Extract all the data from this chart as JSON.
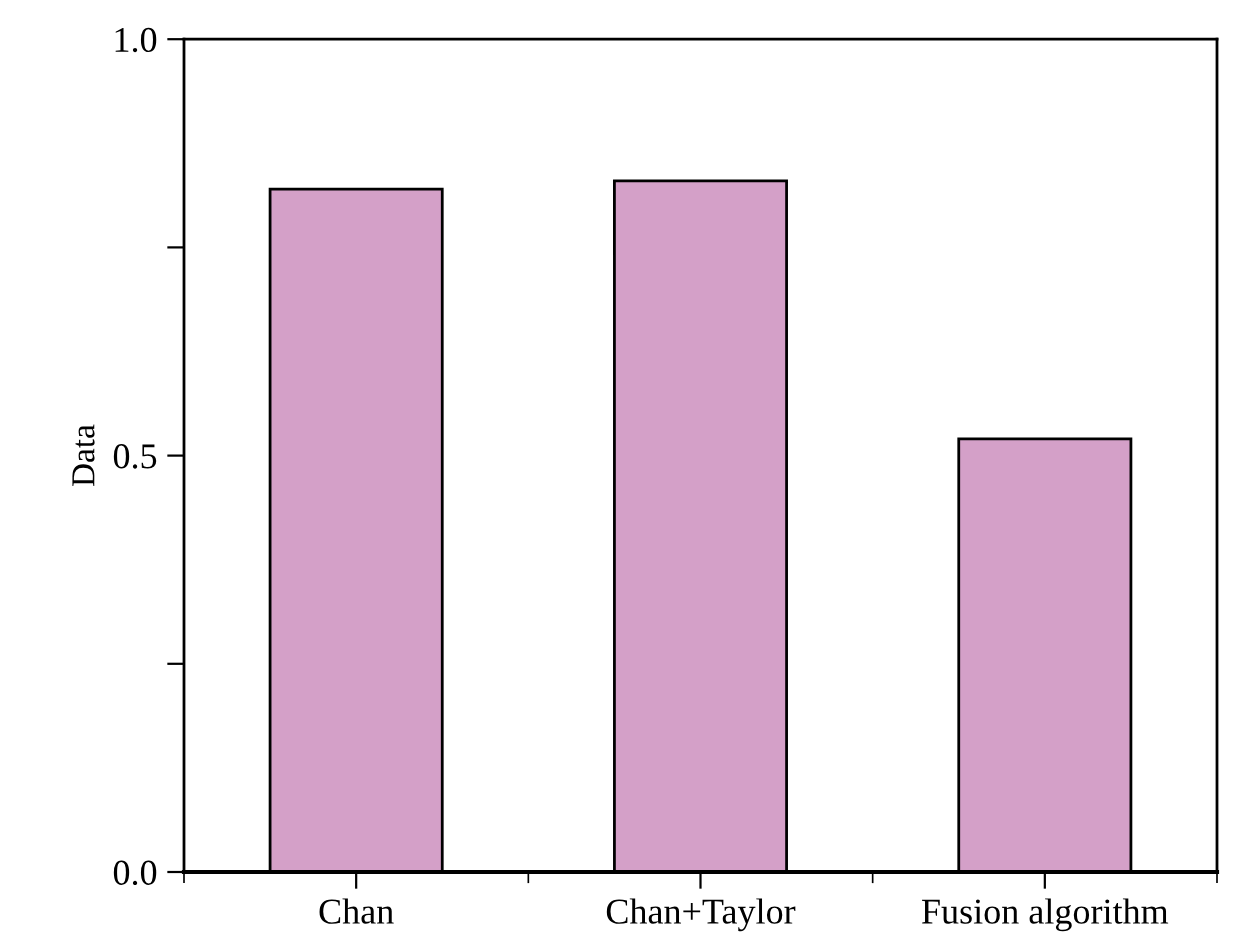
{
  "chart_data": {
    "type": "bar",
    "ylabel": "Data",
    "categories": [
      "Chan",
      "Chan+Taylor",
      "Fusion algorithm"
    ],
    "values": [
      0.82,
      0.83,
      0.52
    ],
    "color": "#d4a0c8",
    "ylim": [
      0,
      1
    ],
    "yticks": [
      {
        "value": 0,
        "label": "0.0"
      },
      {
        "value": 0.25,
        "label": null
      },
      {
        "value": 0.5,
        "label": "0.5"
      },
      {
        "value": 0.75,
        "label": null
      },
      {
        "value": 1,
        "label": "1.0"
      }
    ],
    "grid": false,
    "legend": false
  }
}
